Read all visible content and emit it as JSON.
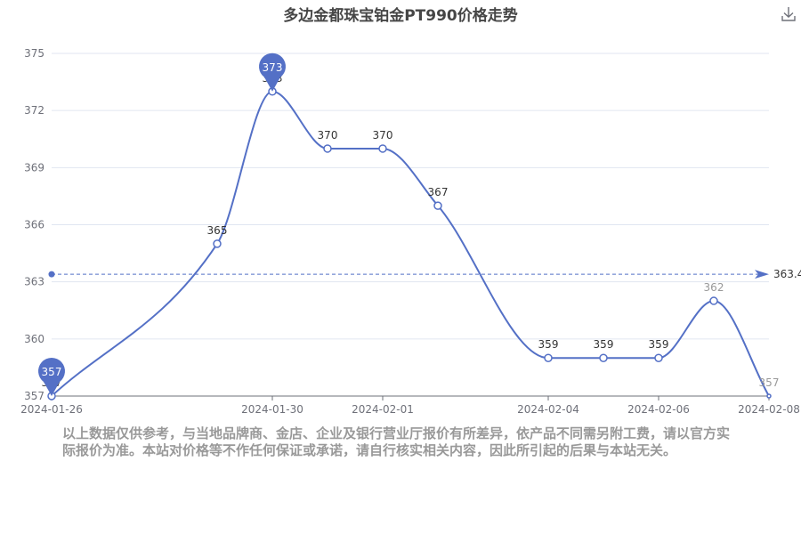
{
  "colors": {
    "series": "#5470c6",
    "axis_label": "#6e7079",
    "grid": "#e0e6f1",
    "title": "#464646",
    "disclaimer": "#999999"
  },
  "header": {
    "title": "多边金都珠宝铂金PT990价格走势",
    "download_icon": "download-icon"
  },
  "disclaimer": "以上数据仅供参考，与当地品牌商、金店、企业及银行营业厅报价有所差异，依产品不同需另附工费，请以官方实际报价为准。本站对价格等不作任何保证或承诺，请自行核实相关内容，因此所引起的后果与本站无关。",
  "chart_data": {
    "type": "line",
    "title": "多边金都珠宝铂金PT990价格走势",
    "x": [
      "2024-01-26",
      "2024-01-29",
      "2024-01-30",
      "2024-01-31",
      "2024-02-01",
      "2024-02-02",
      "2024-02-04",
      "2024-02-05",
      "2024-02-06",
      "2024-02-07",
      "2024-02-08"
    ],
    "x_tick_labels": [
      "2024-01-26",
      "2024-01-30",
      "2024-02-01",
      "2024-02-04",
      "2024-02-06",
      "2024-02-08"
    ],
    "series": [
      {
        "values": [
          357,
          365,
          373,
          370,
          370,
          367,
          359,
          359,
          359,
          362,
          357
        ]
      }
    ],
    "ylim": [
      357,
      375
    ],
    "yticks": [
      357,
      360,
      363,
      366,
      369,
      372,
      375
    ],
    "smooth": true,
    "grid": true,
    "mark_points": [
      {
        "type": "max",
        "label": "373",
        "value": 373,
        "x": "2024-01-30"
      },
      {
        "type": "min",
        "label": "357",
        "value": 357,
        "x": "2024-01-26"
      }
    ],
    "mark_line": {
      "type": "average",
      "label": "363.4",
      "value": 363.4
    }
  }
}
